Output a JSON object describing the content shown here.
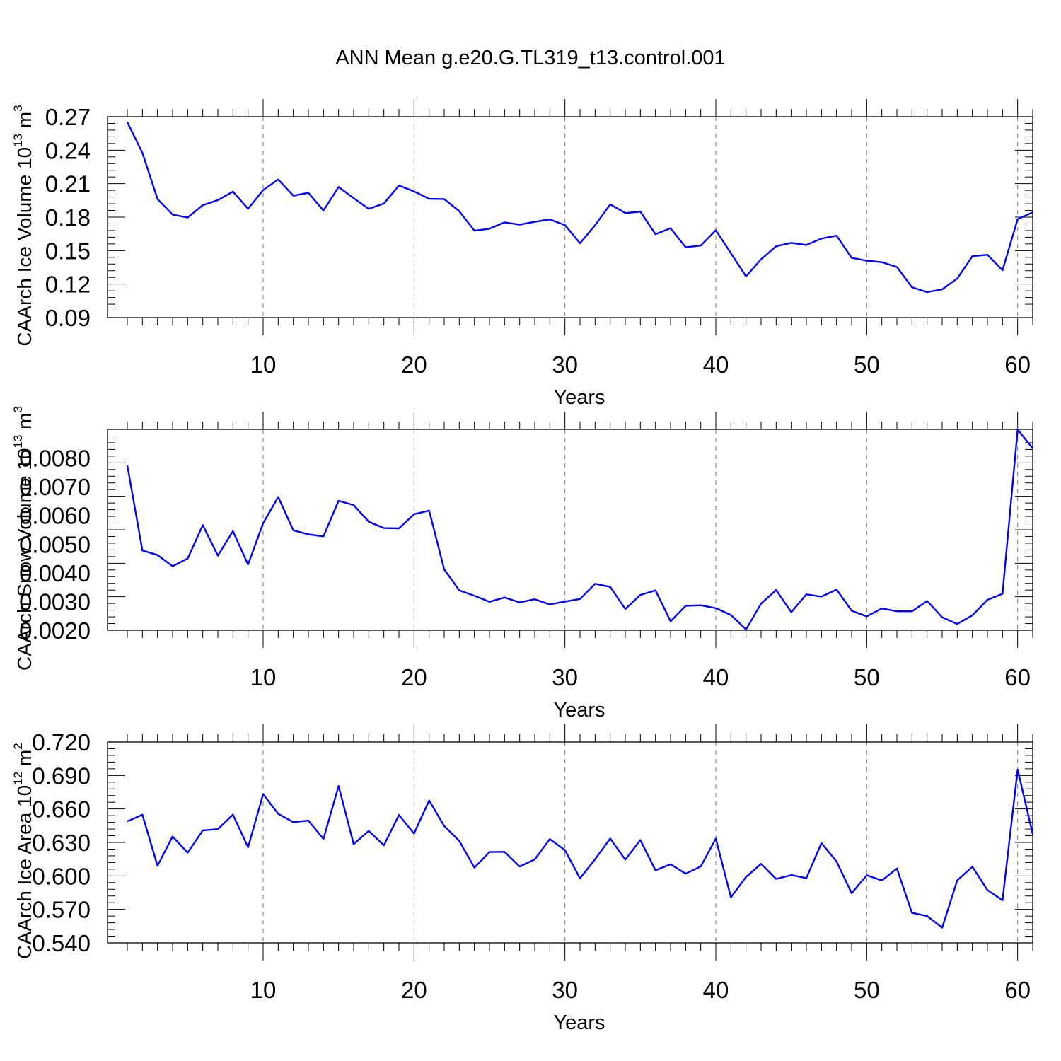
{
  "title": "ANN Mean g.e20.G.TL319_t13.control.001",
  "chart_data": [
    {
      "type": "line",
      "ylabel": {
        "main": "CAArch Ice Volume 10",
        "exp": "13",
        "unit": " m",
        "unit_exp": "3"
      },
      "xlabel": "Years",
      "xlim": [
        1,
        61
      ],
      "x_ticks": [
        "10",
        "20",
        "30",
        "40",
        "50",
        "60"
      ],
      "ylim": [
        0.09,
        0.27
      ],
      "y_ticks": [
        "0.09",
        "0.12",
        "0.15",
        "0.18",
        "0.21",
        "0.24",
        "0.27"
      ],
      "grid": "x-dashed",
      "series": [
        {
          "name": "Ice Volume",
          "color": "#0000ff",
          "values": [
            0.2651,
            0.2376,
            0.1962,
            0.1823,
            0.1796,
            0.1907,
            0.1953,
            0.2029,
            0.1875,
            0.2042,
            0.2138,
            0.1992,
            0.2018,
            0.1859,
            0.207,
            0.197,
            0.1874,
            0.1922,
            0.2083,
            0.2031,
            0.1964,
            0.1962,
            0.1853,
            0.1679,
            0.1696,
            0.1753,
            0.1733,
            0.1758,
            0.178,
            0.1729,
            0.1566,
            0.1728,
            0.1915,
            0.1837,
            0.1849,
            0.1647,
            0.1701,
            0.153,
            0.1545,
            0.1683,
            0.1477,
            0.1269,
            0.1423,
            0.1539,
            0.157,
            0.155,
            0.1608,
            0.1634,
            0.1435,
            0.141,
            0.1396,
            0.1353,
            0.1172,
            0.1128,
            0.1153,
            0.125,
            0.145,
            0.1463,
            0.1324,
            0.1782,
            0.1843
          ]
        }
      ]
    },
    {
      "type": "line",
      "ylabel": {
        "main": "CAArch Snow Volume 10",
        "exp": "13",
        "unit": " m",
        "unit_exp": "3"
      },
      "xlabel": "Years",
      "xlim": [
        1,
        61
      ],
      "x_ticks": [
        "10",
        "20",
        "30",
        "40",
        "50",
        "60"
      ],
      "ylim": [
        0.002,
        0.009
      ],
      "y_ticks": [
        "0.0020",
        "0.0030",
        "0.0040",
        "0.0050",
        "0.0060",
        "0.0070",
        "0.0080"
      ],
      "grid": "x-dashed",
      "series": [
        {
          "name": "Snow Volume",
          "color": "#0000ff",
          "values": [
            0.00774,
            0.00478,
            0.00462,
            0.00423,
            0.0045,
            0.00566,
            0.0046,
            0.00545,
            0.00429,
            0.00573,
            0.00664,
            0.00548,
            0.00534,
            0.00527,
            0.00651,
            0.00636,
            0.00578,
            0.00556,
            0.00555,
            0.00604,
            0.00617,
            0.00412,
            0.00339,
            0.0032,
            0.00299,
            0.00314,
            0.00297,
            0.00308,
            0.0029,
            0.003,
            0.00309,
            0.00362,
            0.00351,
            0.00274,
            0.00323,
            0.00339,
            0.00231,
            0.00285,
            0.00287,
            0.00277,
            0.00253,
            0.00203,
            0.00293,
            0.0034,
            0.00263,
            0.00325,
            0.00317,
            0.00342,
            0.00268,
            0.00248,
            0.00276,
            0.00266,
            0.00266,
            0.00302,
            0.00245,
            0.00222,
            0.00252,
            0.00306,
            0.00327,
            0.00899,
            0.00834
          ]
        }
      ]
    },
    {
      "type": "line",
      "ylabel": {
        "main": "CAArch Ice Area 10",
        "exp": "12",
        "unit": " m",
        "unit_exp": "2"
      },
      "xlabel": "Years",
      "xlim": [
        1,
        61
      ],
      "x_ticks": [
        "10",
        "20",
        "30",
        "40",
        "50",
        "60"
      ],
      "ylim": [
        0.54,
        0.72
      ],
      "y_ticks": [
        "0.540",
        "0.570",
        "0.600",
        "0.630",
        "0.660",
        "0.690",
        "0.720"
      ],
      "grid": "x-dashed",
      "series": [
        {
          "name": "Ice Area",
          "color": "#0000ff",
          "values": [
            0.6489,
            0.6548,
            0.6091,
            0.6353,
            0.6208,
            0.6408,
            0.6419,
            0.6549,
            0.6256,
            0.6733,
            0.6556,
            0.6482,
            0.6496,
            0.6331,
            0.6806,
            0.6285,
            0.6404,
            0.6274,
            0.6545,
            0.638,
            0.6676,
            0.6447,
            0.6313,
            0.6074,
            0.6214,
            0.6216,
            0.6084,
            0.6148,
            0.633,
            0.6231,
            0.5978,
            0.615,
            0.6335,
            0.6146,
            0.6321,
            0.605,
            0.6104,
            0.602,
            0.6085,
            0.6334,
            0.5808,
            0.5991,
            0.6108,
            0.5973,
            0.6008,
            0.598,
            0.6294,
            0.6129,
            0.5845,
            0.6006,
            0.5959,
            0.6066,
            0.5669,
            0.564,
            0.5536,
            0.596,
            0.6082,
            0.5873,
            0.5782,
            0.6953,
            0.6374
          ]
        }
      ]
    }
  ]
}
